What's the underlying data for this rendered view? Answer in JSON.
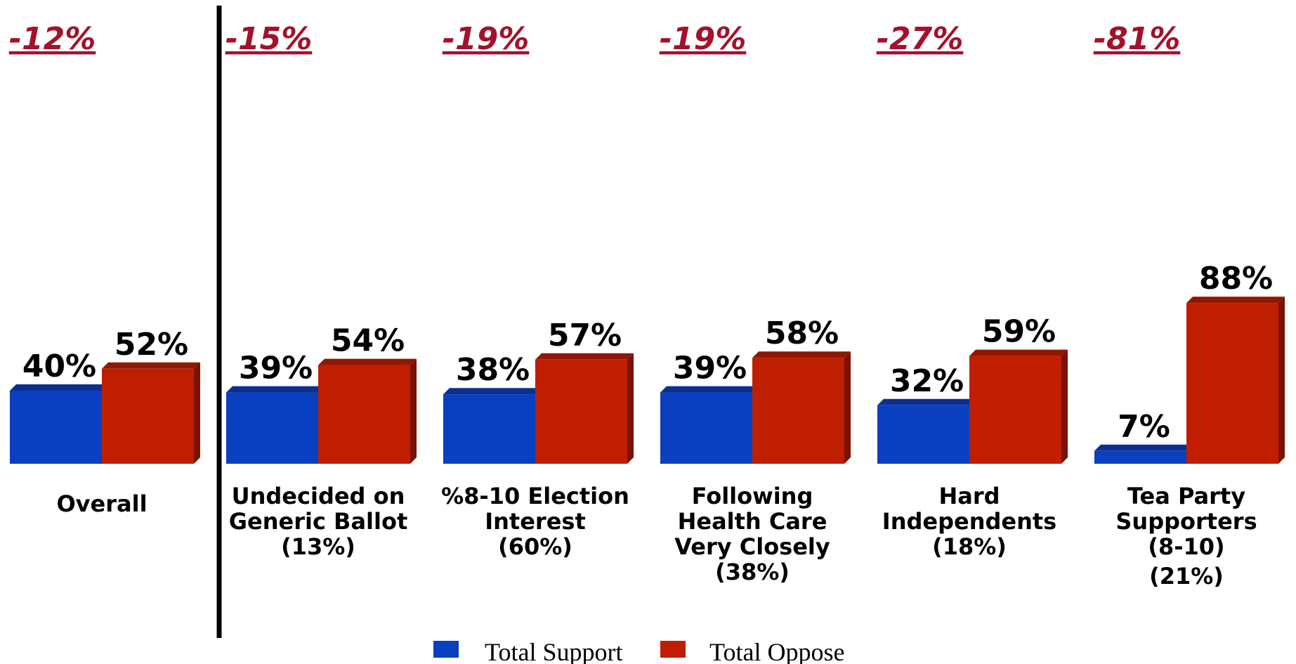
{
  "chart_data": {
    "type": "bar",
    "title": "",
    "xlabel": "",
    "ylabel": "",
    "ylim": [
      0,
      100
    ],
    "categories": [
      [
        "Overall"
      ],
      [
        "Undecided on",
        "Generic Ballot",
        "(13%)"
      ],
      [
        "%8-10 Election",
        "Interest",
        "(60%)"
      ],
      [
        "Following",
        "Health Care",
        "Very Closely",
        "(38%)"
      ],
      [
        "Hard",
        "Independents",
        "(18%)"
      ],
      [
        "Tea Party",
        "Supporters",
        "(8-10)",
        "(21%)"
      ]
    ],
    "series": [
      {
        "name": "Total Support",
        "color": "#0a3fbf",
        "values": [
          40,
          39,
          38,
          39,
          32,
          7
        ],
        "labels": [
          "40%",
          "39%",
          "38%",
          "39%",
          "32%",
          "7%"
        ]
      },
      {
        "name": "Total Oppose",
        "color": "#bf1e00",
        "values": [
          52,
          54,
          57,
          58,
          59,
          88
        ],
        "labels": [
          "52%",
          "54%",
          "57%",
          "58%",
          "59%",
          "88%"
        ]
      }
    ],
    "net_labels": [
      "-12%",
      "-15%",
      "-19%",
      "-19%",
      "-27%",
      "-81%"
    ],
    "legend": {
      "position": "bottom-center"
    }
  }
}
